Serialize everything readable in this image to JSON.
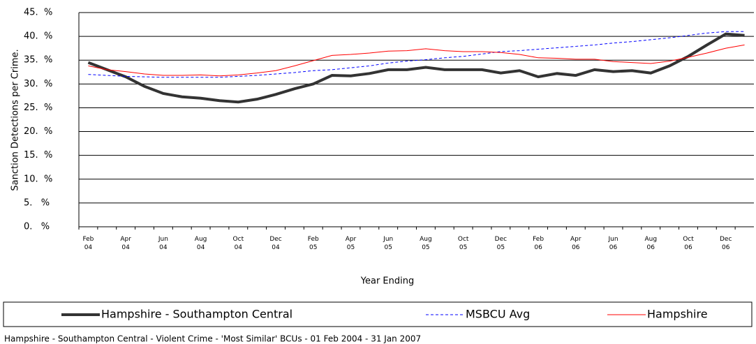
{
  "chart_data": {
    "type": "line",
    "y_label": "Sanction Detections per Crime.",
    "x_label": "Year Ending",
    "footer": "Hampshire - Southampton Central - Violent Crime - 'Most Similar' BCUs - 01 Feb 2004 - 31 Jan 2007",
    "categories": [
      "Feb 04",
      null,
      "Apr 04",
      null,
      "Jun 04",
      null,
      "Aug 04",
      null,
      "Oct 04",
      null,
      "Dec 04",
      null,
      "Feb 05",
      null,
      "Apr 05",
      null,
      "Jun 05",
      null,
      "Aug 05",
      null,
      "Oct 05",
      null,
      "Dec 05",
      null,
      "Feb 06",
      null,
      "Apr 06",
      null,
      "Jun 06",
      null,
      "Aug 06",
      null,
      "Oct 06",
      null,
      "Dec 06",
      null
    ],
    "ylim": [
      0,
      45
    ],
    "yticks": [
      {
        "value": 0,
        "label": "0.   %"
      },
      {
        "value": 5,
        "label": "5.   %"
      },
      {
        "value": 10,
        "label": "10.  %"
      },
      {
        "value": 15,
        "label": "15.  %"
      },
      {
        "value": 20,
        "label": "20.  %"
      },
      {
        "value": 25,
        "label": "25.  %"
      },
      {
        "value": 30,
        "label": "30.  %"
      },
      {
        "value": 35,
        "label": "35.  %"
      },
      {
        "value": 40,
        "label": "40.  %"
      },
      {
        "value": 45,
        "label": "45.  %"
      }
    ],
    "grid": true,
    "series": [
      {
        "name": "Hampshire - Southampton Central",
        "color": "#333333",
        "width": 4,
        "dashed": false,
        "values": [
          34.5,
          33,
          31.5,
          29.5,
          28,
          27.3,
          27,
          26.5,
          26.2,
          26.8,
          27.8,
          29,
          30,
          31.8,
          31.7,
          32.2,
          33,
          33,
          33.5,
          33,
          33,
          33,
          32.3,
          32.8,
          31.5,
          32.2,
          31.8,
          33,
          32.6,
          32.8,
          32.3,
          33.8,
          35.8,
          38.2,
          40.5,
          40.2
        ]
      },
      {
        "name": "MSBCU Avg",
        "color": "#0000ff",
        "width": 1,
        "dashed": true,
        "values": [
          32,
          31.8,
          31.6,
          31.5,
          31.4,
          31.4,
          31.4,
          31.4,
          31.6,
          31.8,
          32.1,
          32.4,
          32.8,
          33,
          33.4,
          33.8,
          34.4,
          34.8,
          35.1,
          35.5,
          35.8,
          36.3,
          36.8,
          37,
          37.3,
          37.6,
          37.9,
          38.2,
          38.6,
          38.9,
          39.3,
          39.7,
          40.2,
          40.7,
          41,
          41
        ]
      },
      {
        "name": "Hampshire",
        "color": "#ff0000",
        "width": 1,
        "dashed": false,
        "values": [
          33.8,
          33,
          32.6,
          32.1,
          31.8,
          31.8,
          31.9,
          31.7,
          31.9,
          32.3,
          32.8,
          33.8,
          34.9,
          36,
          36.2,
          36.5,
          36.9,
          37,
          37.4,
          37,
          36.8,
          36.8,
          36.6,
          36.2,
          35.5,
          35.4,
          35.2,
          35.2,
          34.7,
          34.5,
          34.3,
          34.8,
          35.6,
          36.5,
          37.5,
          38.2
        ]
      }
    ]
  }
}
